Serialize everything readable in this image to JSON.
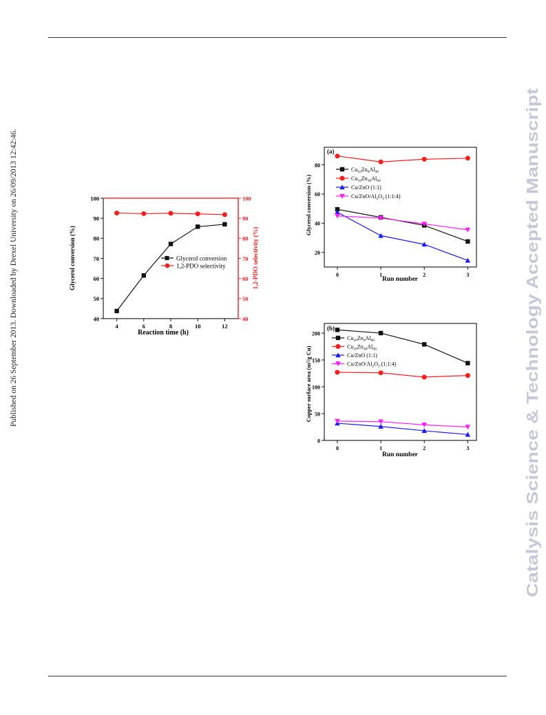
{
  "side_note": "Published on 26 September 2013. Downloaded by Drexel University on 26/09/2013 12:42:46.",
  "watermark": "Catalysis Science & Technology Accepted Manuscript",
  "colors": {
    "black": "#111111",
    "red": "#ff1a1a",
    "blue": "#1a1aff",
    "magenta": "#ff19ff"
  },
  "chart_data": [
    {
      "id": "time",
      "type": "line",
      "title": "",
      "xlabel": "Reaction time (h)",
      "ylabel": "Glycerol conversion (%)",
      "y2label": "1,2-PDO selectivity (%)",
      "xlim": [
        3,
        13
      ],
      "xticks": [
        4,
        6,
        8,
        10,
        12
      ],
      "ylim": [
        40,
        100
      ],
      "yticks": [
        40,
        50,
        60,
        70,
        80,
        90,
        100
      ],
      "y2lim": [
        40,
        100
      ],
      "y2ticks": [
        40,
        50,
        60,
        70,
        80,
        90,
        100
      ],
      "legend_position": "center-right",
      "series": [
        {
          "name": "Glycerol conversion",
          "color": "#111111",
          "marker": "square",
          "axis": "left",
          "x": [
            4,
            6,
            8,
            10,
            12
          ],
          "y": [
            43.8,
            61.5,
            77.2,
            85.8,
            87.0
          ]
        },
        {
          "name": "1,2-PDO selectivity",
          "color": "#ff1a1a",
          "marker": "circle",
          "axis": "right",
          "x": [
            4,
            6,
            8,
            10,
            12
          ],
          "y": [
            92.6,
            92.3,
            92.5,
            92.2,
            91.8
          ]
        }
      ]
    },
    {
      "id": "runs-a",
      "type": "line",
      "panel_label": "(a)",
      "xlabel": "Run number",
      "ylabel": "Glycerol conversion (%)",
      "xlim": [
        -0.3,
        3.2
      ],
      "xticks": [
        0,
        1,
        2,
        3
      ],
      "ylim": [
        10,
        92
      ],
      "yticks": [
        20,
        40,
        60,
        80
      ],
      "legend_position": "upper-left",
      "series": [
        {
          "name_main": "Cu",
          "name_parts": [
            [
              "Cu",
              ""
            ],
            [
              "10",
              "sub"
            ],
            [
              "Zn",
              ""
            ],
            [
              "0",
              "sub"
            ],
            [
              "Al",
              ""
            ],
            [
              "90",
              "sub"
            ]
          ],
          "color": "#111111",
          "marker": "square",
          "x": [
            0,
            1,
            2,
            3
          ],
          "y": [
            49.5,
            44.0,
            38.5,
            27.5
          ]
        },
        {
          "name_main": "Cu",
          "name_parts": [
            [
              "Cu",
              ""
            ],
            [
              "10",
              "sub"
            ],
            [
              "Zn",
              ""
            ],
            [
              "30",
              "sub"
            ],
            [
              "Al",
              ""
            ],
            [
              "60",
              "sub"
            ]
          ],
          "color": "#ff1a1a",
          "marker": "circle",
          "x": [
            0,
            1,
            2,
            3
          ],
          "y": [
            86.0,
            82.0,
            83.8,
            84.5
          ]
        },
        {
          "name_main": "Cu",
          "name_parts": [
            [
              "Cu/ZnO (1:1)",
              ""
            ]
          ],
          "color": "#1a1aff",
          "marker": "triangle-up",
          "x": [
            0,
            1,
            2,
            3
          ],
          "y": [
            47.5,
            31.5,
            25.5,
            14.5
          ]
        },
        {
          "name_main": "Cu",
          "name_parts": [
            [
              "Cu/ZnO/Al",
              ""
            ],
            [
              "2",
              "sub"
            ],
            [
              "O",
              ""
            ],
            [
              "3",
              "sub"
            ],
            [
              " (1:1:4)",
              ""
            ]
          ],
          "color": "#ff19ff",
          "marker": "triangle-down",
          "x": [
            0,
            1,
            2,
            3
          ],
          "y": [
            45.0,
            43.5,
            39.5,
            35.5
          ]
        }
      ]
    },
    {
      "id": "runs-b",
      "type": "line",
      "panel_label": "(b)",
      "xlabel": "Run number",
      "ylabel": "Copper surface area (m²/g Cu)",
      "xlim": [
        -0.3,
        3.2
      ],
      "xticks": [
        0,
        1,
        2,
        3
      ],
      "ylim": [
        0,
        218
      ],
      "yticks": [
        0,
        50,
        100,
        150,
        200
      ],
      "legend_position": "upper-left",
      "series": [
        {
          "name_main": "Cu",
          "name_parts": [
            [
              "Cu",
              ""
            ],
            [
              "10",
              "sub"
            ],
            [
              "Zn",
              ""
            ],
            [
              "0",
              "sub"
            ],
            [
              "Al",
              ""
            ],
            [
              "90",
              "sub"
            ]
          ],
          "color": "#111111",
          "marker": "square",
          "x": [
            0,
            1,
            2,
            3
          ],
          "y": [
            206,
            200,
            179,
            144
          ]
        },
        {
          "name_main": "Cu",
          "name_parts": [
            [
              "Cu",
              ""
            ],
            [
              "10",
              "sub"
            ],
            [
              "Zn",
              ""
            ],
            [
              "30",
              "sub"
            ],
            [
              "Al",
              ""
            ],
            [
              "60",
              "sub"
            ]
          ],
          "color": "#ff1a1a",
          "marker": "circle",
          "x": [
            0,
            1,
            2,
            3
          ],
          "y": [
            127,
            126,
            118,
            121
          ]
        },
        {
          "name_main": "Cu",
          "name_parts": [
            [
              "Cu/ZnO (1:1)",
              ""
            ]
          ],
          "color": "#1a1aff",
          "marker": "triangle-up",
          "x": [
            0,
            1,
            2,
            3
          ],
          "y": [
            32,
            26,
            18,
            11
          ]
        },
        {
          "name_main": "Cu",
          "name_parts": [
            [
              "Cu/ZnO/Al",
              ""
            ],
            [
              "2",
              "sub"
            ],
            [
              "O",
              ""
            ],
            [
              "3",
              "sub"
            ],
            [
              " (1:1:4)",
              ""
            ]
          ],
          "color": "#ff19ff",
          "marker": "triangle-down",
          "x": [
            0,
            1,
            2,
            3
          ],
          "y": [
            36,
            35,
            29,
            25
          ]
        }
      ]
    }
  ]
}
